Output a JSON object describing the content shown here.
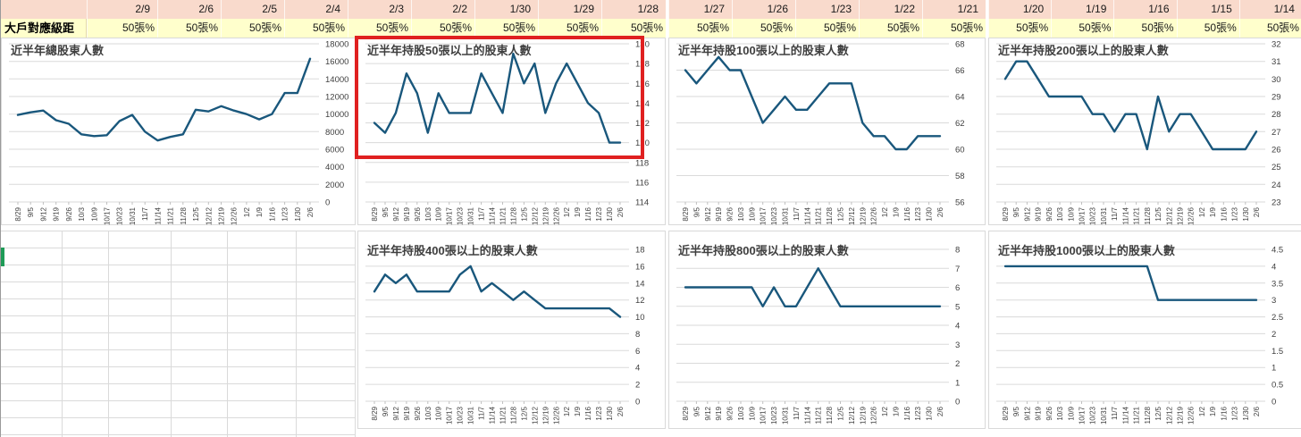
{
  "header": {
    "corner_label": "大戶對應級距",
    "range_label": "50張%",
    "date_groups": [
      [
        "2/9",
        "2/6",
        "2/5",
        "2/4",
        "2/3",
        "2/2",
        "1/30",
        "1/29",
        "1/28"
      ],
      [
        "1/27",
        "1/26",
        "1/23",
        "1/22",
        "1/21"
      ],
      [
        "1/20",
        "1/19",
        "1/16",
        "1/15",
        "1/14"
      ]
    ]
  },
  "colors": {
    "line": "#19577C",
    "header_pink": "#F9DACC",
    "header_yellow": "#FFFFCC",
    "highlight_red": "#E02020",
    "gridline": "#DADADA",
    "tick": "#BFBFBF",
    "selection_green": "#1E9B57"
  },
  "x_labels": [
    "8/29",
    "9/5",
    "9/12",
    "9/19",
    "9/26",
    "10/3",
    "10/9",
    "10/17",
    "10/23",
    "10/31",
    "11/7",
    "11/14",
    "11/21",
    "11/28",
    "12/5",
    "12/12",
    "12/19",
    "12/26",
    "1/2",
    "1/9",
    "1/16",
    "1/23",
    "1/30",
    "2/6"
  ],
  "chart_data": [
    {
      "type": "line",
      "title": "近半年總股東人數",
      "xlabel": "",
      "ylabel": "",
      "ylim": [
        0,
        18000
      ],
      "ystep": 2000,
      "grid": "horizontal",
      "legend": "none",
      "values": [
        9900,
        10200,
        10400,
        9300,
        8900,
        7700,
        7500,
        7600,
        9200,
        9900,
        8000,
        7000,
        7400,
        7700,
        10500,
        10300,
        10900,
        10400,
        10000,
        9400,
        10000,
        12400,
        12400,
        16300
      ],
      "highlighted": false
    },
    {
      "type": "line",
      "title": "近半年持股50張以上的股東人數",
      "xlabel": "",
      "ylabel": "",
      "ylim": [
        114,
        130
      ],
      "ystep": 2,
      "grid": "horizontal",
      "legend": "none",
      "values": [
        122,
        121,
        123,
        127,
        125,
        121,
        125,
        123,
        123,
        123,
        127,
        125,
        123,
        129,
        126,
        128,
        123,
        126,
        128,
        126,
        124,
        123,
        120,
        120
      ],
      "highlighted": true
    },
    {
      "type": "line",
      "title": "近半年持股100張以上的股東人數",
      "xlabel": "",
      "ylabel": "",
      "ylim": [
        56,
        68
      ],
      "ystep": 2,
      "grid": "horizontal",
      "legend": "none",
      "values": [
        66,
        65,
        66,
        67,
        66,
        66,
        64,
        62,
        63,
        64,
        63,
        63,
        64,
        65,
        65,
        65,
        62,
        61,
        61,
        60,
        60,
        61,
        61,
        61
      ],
      "highlighted": false
    },
    {
      "type": "line",
      "title": "近半年持股200張以上的股東人數",
      "xlabel": "",
      "ylabel": "",
      "ylim": [
        23,
        32
      ],
      "ystep": 1,
      "grid": "horizontal",
      "legend": "none",
      "values": [
        30,
        31,
        31,
        30,
        29,
        29,
        29,
        29,
        28,
        28,
        27,
        28,
        28,
        26,
        29,
        27,
        28,
        28,
        27,
        26,
        26,
        26,
        26,
        27
      ],
      "highlighted": false
    },
    {
      "type": "line",
      "title": "近半年持股400張以上的股東人數",
      "xlabel": "",
      "ylabel": "",
      "ylim": [
        0,
        18
      ],
      "ystep": 2,
      "grid": "horizontal",
      "legend": "none",
      "values": [
        13,
        15,
        14,
        15,
        13,
        13,
        13,
        13,
        15,
        16,
        13,
        14,
        13,
        12,
        13,
        12,
        11,
        11,
        11,
        11,
        11,
        11,
        11,
        10
      ],
      "highlighted": false
    },
    {
      "type": "line",
      "title": "近半年持股800張以上的股東人數",
      "xlabel": "",
      "ylabel": "",
      "ylim": [
        0,
        8
      ],
      "ystep": 1,
      "grid": "horizontal",
      "legend": "none",
      "values": [
        6,
        6,
        6,
        6,
        6,
        6,
        6,
        5,
        6,
        5,
        5,
        6,
        7,
        6,
        5,
        5,
        5,
        5,
        5,
        5,
        5,
        5,
        5,
        5
      ],
      "highlighted": false
    },
    {
      "type": "line",
      "title": "近半年持股1000張以上的股東人數",
      "xlabel": "",
      "ylabel": "",
      "ylim": [
        0,
        4.5
      ],
      "ystep": 0.5,
      "grid": "horizontal",
      "legend": "none",
      "values": [
        4,
        4,
        4,
        4,
        4,
        4,
        4,
        4,
        4,
        4,
        4,
        4,
        4,
        4,
        3,
        3,
        3,
        3,
        3,
        3,
        3,
        3,
        3,
        3
      ],
      "highlighted": false
    }
  ]
}
